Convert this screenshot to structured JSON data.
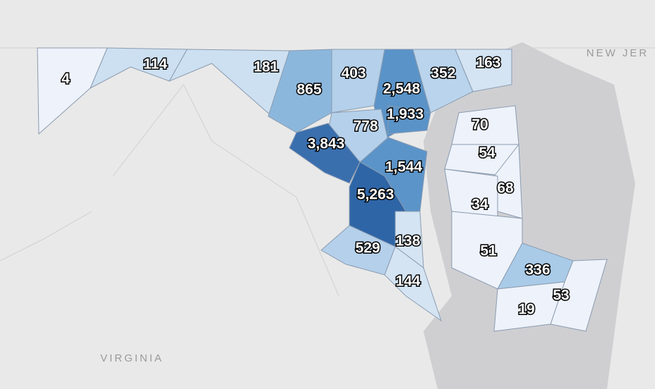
{
  "places": {
    "new_jersey": "NEW JER",
    "virginia": "VIRGINIA"
  },
  "regions": [
    {
      "label": "4",
      "color": "#eef2fa"
    },
    {
      "label": "114",
      "color": "#cde0f1"
    },
    {
      "label": "181",
      "color": "#cde0f1"
    },
    {
      "label": "865",
      "color": "#8cb7dc"
    },
    {
      "label": "403",
      "color": "#b5d0ea"
    },
    {
      "label": "2,548",
      "color": "#5a93c8"
    },
    {
      "label": "352",
      "color": "#b9d4ec"
    },
    {
      "label": "163",
      "color": "#d4e4f3"
    },
    {
      "label": "1,933",
      "color": "#5a93c8"
    },
    {
      "label": "778",
      "color": "#b5d0ea"
    },
    {
      "label": "3,843",
      "color": "#3a6fae"
    },
    {
      "label": "1,544",
      "color": "#5b94c9"
    },
    {
      "label": "5,263",
      "color": "#2e65a6"
    },
    {
      "label": "529",
      "color": "#b5d0ea"
    },
    {
      "label": "138",
      "color": "#d4e4f3"
    },
    {
      "label": "144",
      "color": "#d4e4f3"
    },
    {
      "label": "70",
      "color": "#eef2fa"
    },
    {
      "label": "54",
      "color": "#eef2fa"
    },
    {
      "label": "68",
      "color": "#eef2fa"
    },
    {
      "label": "34",
      "color": "#eef2fa"
    },
    {
      "label": "51",
      "color": "#eef2fa"
    },
    {
      "label": "336",
      "color": "#a9cbe8"
    },
    {
      "label": "53",
      "color": "#eef2fa"
    },
    {
      "label": "19",
      "color": "#eef2fa"
    }
  ]
}
